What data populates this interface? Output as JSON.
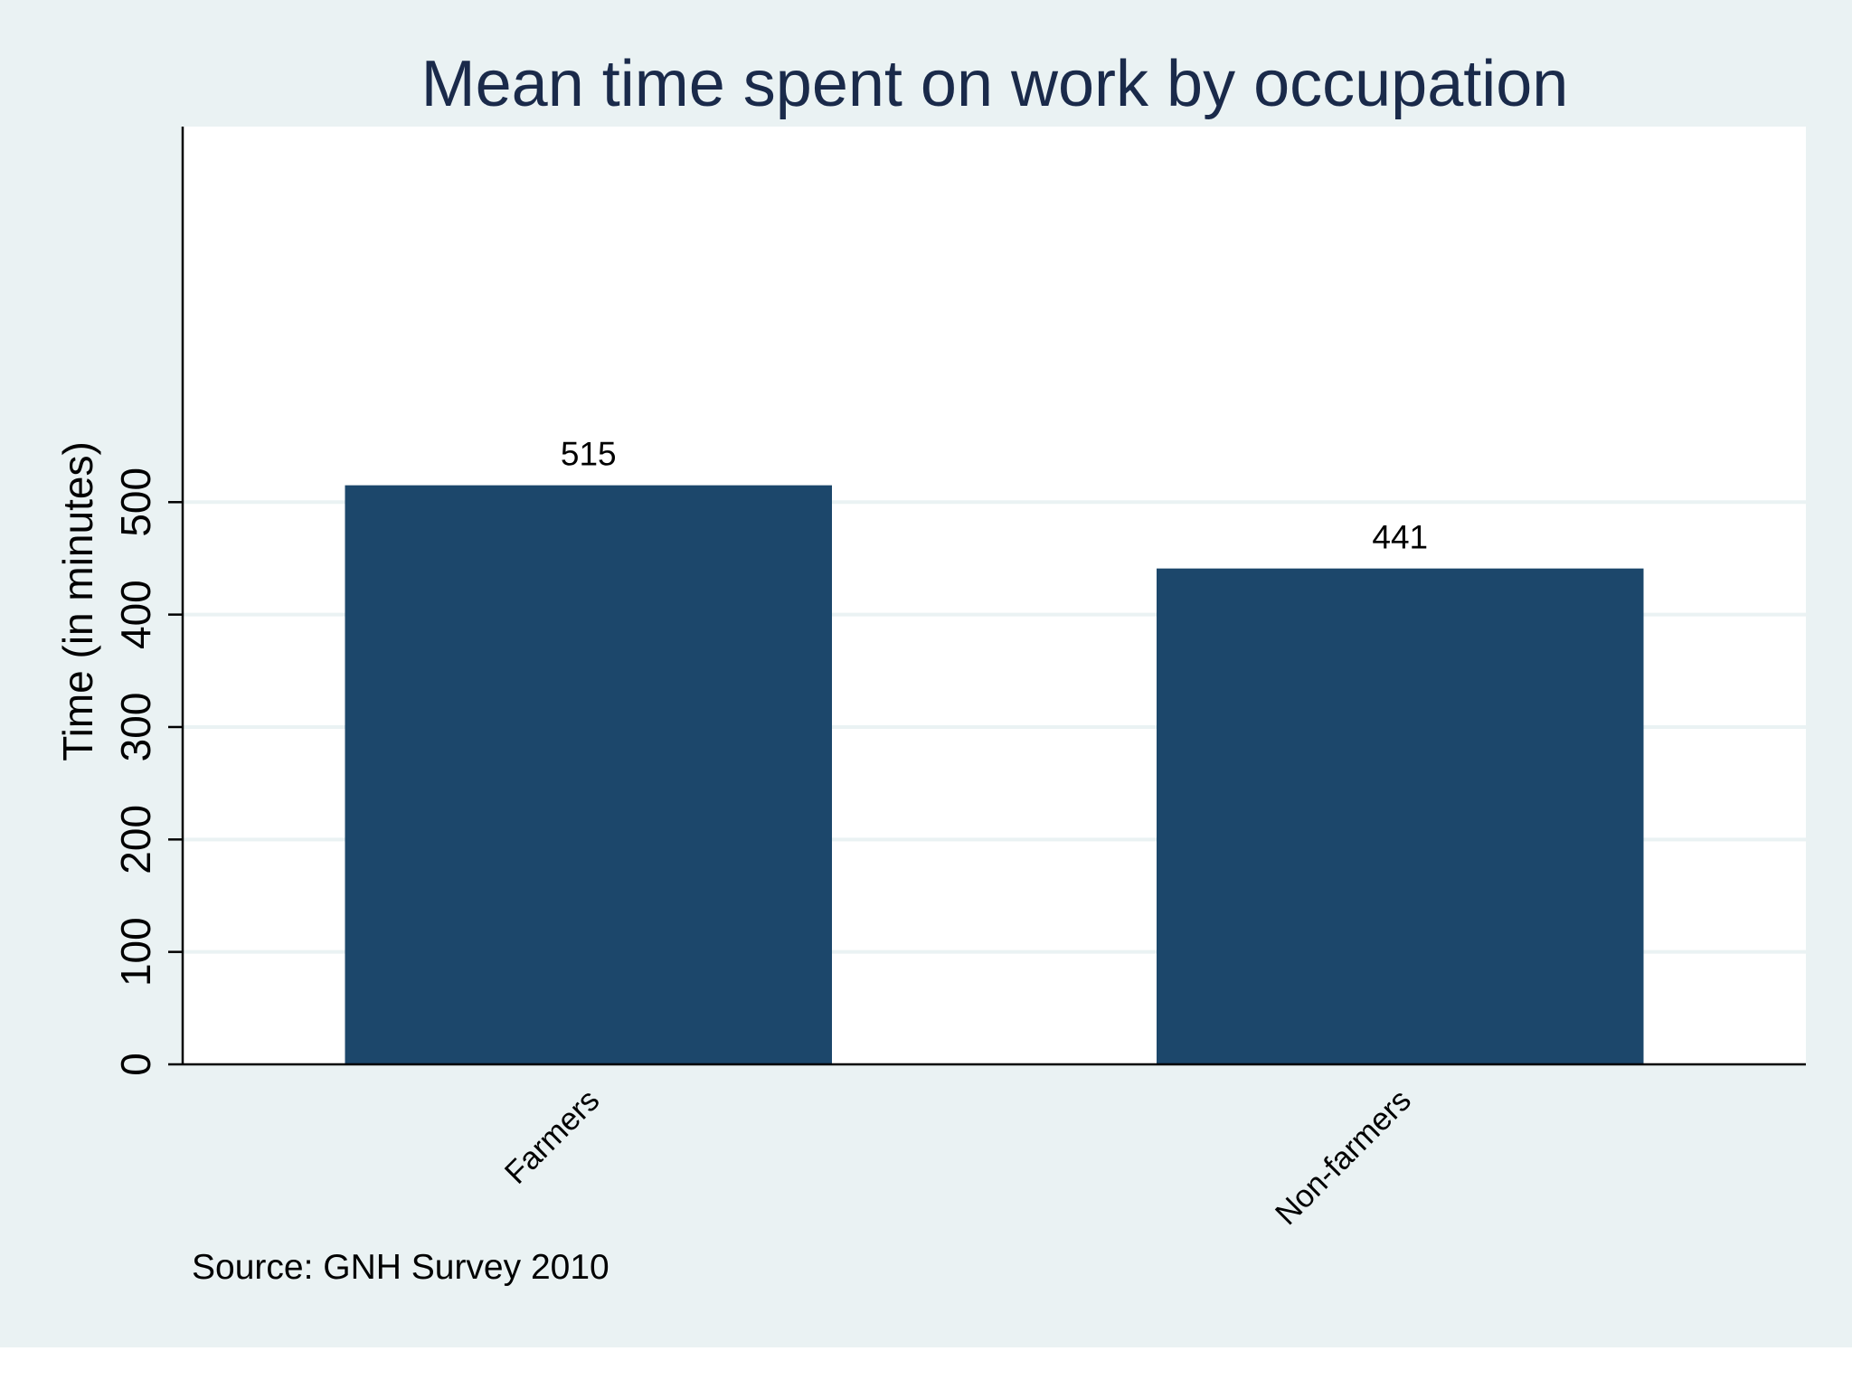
{
  "chart_data": {
    "type": "bar",
    "title": "Mean time spent on work by occupation",
    "ylabel": "Time (in minutes)",
    "xlabel": "",
    "categories": [
      "Farmers",
      "Non-farmers"
    ],
    "values": [
      515,
      441
    ],
    "data_labels": [
      "515",
      "441"
    ],
    "ylim": [
      0,
      500
    ],
    "yticks": [
      0,
      100,
      200,
      300,
      400,
      500
    ],
    "grid": true,
    "legend": "none",
    "note": "Source: GNH Survey 2010",
    "colors": {
      "bar": "#1c476b",
      "figure_background": "#eaf2f3",
      "plot_background": "#ffffff",
      "gridline": "#eaf2f3",
      "title": "#1a2a4a"
    }
  }
}
